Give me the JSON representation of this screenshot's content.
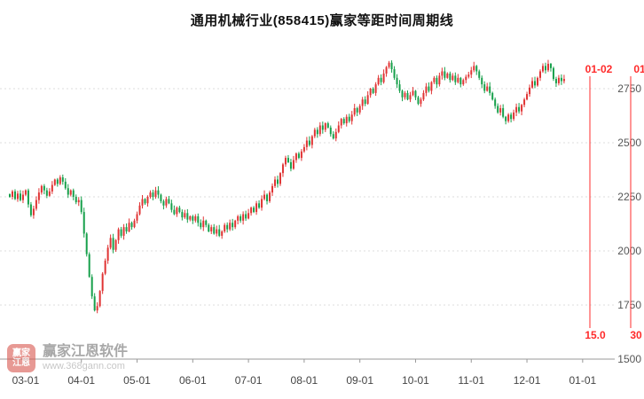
{
  "title": "通用机械行业(858415)赢家等距时间周期线",
  "watermark": {
    "logo_line1": "赢家",
    "logo_line2": "江恩",
    "brand": "赢家江恩软件",
    "url": "www.368gann.com"
  },
  "chart_data": {
    "type": "candlestick",
    "title": "通用机械行业(858415)赢家等距时间周期线",
    "symbol": "858415",
    "name": "通用机械行业",
    "ylim": [
      1500,
      2920
    ],
    "y_ticks": [
      2750,
      2500,
      2250,
      2000,
      1750,
      1500
    ],
    "x_ticks": [
      {
        "i": 6,
        "label": "03-01"
      },
      {
        "i": 27,
        "label": "04-01"
      },
      {
        "i": 48,
        "label": "05-01"
      },
      {
        "i": 69,
        "label": "06-01"
      },
      {
        "i": 90,
        "label": "07-01"
      },
      {
        "i": 111,
        "label": "08-01"
      },
      {
        "i": 132,
        "label": "09-01"
      },
      {
        "i": 153,
        "label": "10-01"
      },
      {
        "i": 174,
        "label": "11-01"
      },
      {
        "i": 195,
        "label": "12-01"
      },
      {
        "i": 216,
        "label": "01-01"
      }
    ],
    "closes": [
      2250,
      2275,
      2240,
      2265,
      2235,
      2260,
      2280,
      2215,
      2165,
      2195,
      2235,
      2270,
      2300,
      2280,
      2255,
      2275,
      2305,
      2330,
      2310,
      2340,
      2320,
      2290,
      2260,
      2280,
      2250,
      2225,
      2235,
      2180,
      2080,
      1985,
      1880,
      1790,
      1725,
      1745,
      1815,
      1895,
      1955,
      2015,
      2060,
      2005,
      2050,
      2100,
      2070,
      2110,
      2090,
      2130,
      2110,
      2140,
      2170,
      2210,
      2240,
      2220,
      2250,
      2270,
      2250,
      2280,
      2260,
      2230,
      2210,
      2240,
      2220,
      2190,
      2170,
      2200,
      2180,
      2155,
      2175,
      2145,
      2160,
      2140,
      2160,
      2130,
      2110,
      2140,
      2120,
      2090,
      2110,
      2080,
      2100,
      2070,
      2090,
      2120,
      2100,
      2130,
      2110,
      2140,
      2160,
      2140,
      2170,
      2150,
      2175,
      2200,
      2180,
      2220,
      2200,
      2240,
      2260,
      2230,
      2270,
      2300,
      2330,
      2310,
      2360,
      2400,
      2430,
      2410,
      2380,
      2420,
      2450,
      2430,
      2460,
      2480,
      2510,
      2490,
      2530,
      2560,
      2540,
      2580,
      2560,
      2590,
      2570,
      2540,
      2520,
      2550,
      2580,
      2610,
      2590,
      2620,
      2600,
      2630,
      2660,
      2640,
      2670,
      2700,
      2680,
      2720,
      2750,
      2730,
      2770,
      2800,
      2780,
      2820,
      2850,
      2870,
      2840,
      2800,
      2770,
      2740,
      2710,
      2730,
      2700,
      2720,
      2740,
      2710,
      2680,
      2700,
      2730,
      2760,
      2740,
      2780,
      2800,
      2770,
      2810,
      2830,
      2800,
      2820,
      2790,
      2810,
      2780,
      2800,
      2770,
      2790,
      2805,
      2815,
      2835,
      2855,
      2830,
      2800,
      2770,
      2740,
      2760,
      2730,
      2700,
      2670,
      2640,
      2660,
      2620,
      2600,
      2630,
      2610,
      2640,
      2665,
      2645,
      2675,
      2700,
      2725,
      2755,
      2785,
      2765,
      2800,
      2830,
      2855,
      2835,
      2865,
      2845,
      2795,
      2775,
      2800,
      2785,
      2795
    ],
    "period_lines": [
      {
        "x": 665,
        "top_label": "01-02",
        "bottom_label": "15.0"
      },
      {
        "x": 711,
        "top_label": "01",
        "bottom_label": "30"
      }
    ],
    "colors": {
      "up": "#e03434",
      "down": "#17a04b",
      "period_line": "#ff2b2b",
      "grid": "#dcdcdc",
      "axis": "#999999",
      "x_label": "#444444",
      "y_label": "#555555"
    },
    "legend_position": "none",
    "grid": true
  }
}
